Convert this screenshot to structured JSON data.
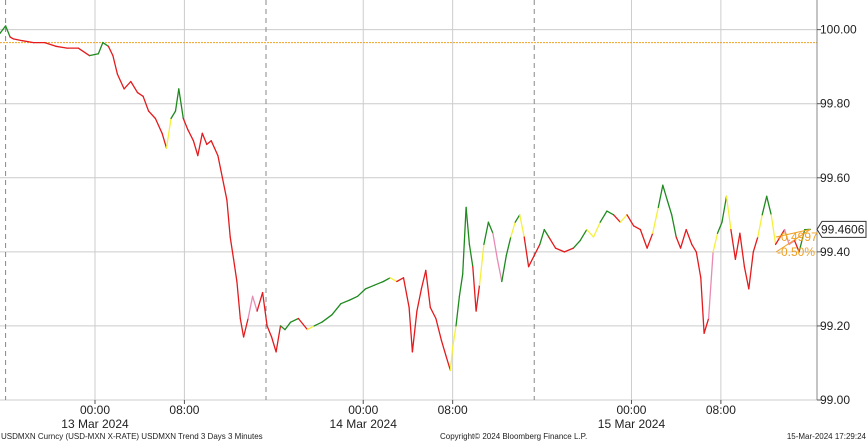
{
  "footer": {
    "left": "USDMXN Curncy (USD-MXN X-RATE) USDMXN Trend 3 Days 3 Minutes",
    "center": "Copyright© 2024 Bloomberg Finance L.P.",
    "right": "15-Mar-2024 17:29:24"
  },
  "chart_data": {
    "type": "line",
    "title": "",
    "xlabel": "",
    "ylabel": "",
    "ylim": [
      99.0,
      100.08
    ],
    "y_ticks": [
      "100.00",
      "99.80",
      "99.60",
      "99.40",
      "99.20",
      "99.00"
    ],
    "y_tick_values": [
      100.0,
      99.8,
      99.6,
      99.4,
      99.2,
      99.0
    ],
    "x_ticks": [
      {
        "label": "00:00",
        "day": "13 Mar 2024",
        "t": 0
      },
      {
        "label": "08:00",
        "day": "",
        "t": 8
      },
      {
        "label": "00:00",
        "day": "14 Mar 2024",
        "t": 24
      },
      {
        "label": "08:00",
        "day": "",
        "t": 32
      },
      {
        "label": "00:00",
        "day": "15 Mar 2024",
        "t": 48
      },
      {
        "label": "08:00",
        "day": "",
        "t": 56
      }
    ],
    "xlim_hours": [
      -8.5,
      64.6
    ],
    "session_breaks_hours": [
      -8,
      15.3,
      39.3
    ],
    "reference_line": 99.965,
    "last_value": "99.4606",
    "last_value_num": 99.4606,
    "change_abs": "-0.4997",
    "change_pct": "-0.50%",
    "colors": {
      "down": "#e41a1c",
      "up": "#1e8a1e",
      "neutral": "#f5f03c",
      "mixed": "#e88ab4",
      "reference": "#f0a020",
      "grid": "#cccccc",
      "annotation": "#f0a020"
    },
    "series": [
      {
        "values": [
          [
            -8.5,
            99.99,
            "up"
          ],
          [
            -8.0,
            100.01,
            "up"
          ],
          [
            -7.6,
            99.98,
            "up"
          ],
          [
            -7.3,
            99.975,
            "down"
          ],
          [
            -6.5,
            99.97,
            "down"
          ],
          [
            -5.5,
            99.965,
            "down"
          ],
          [
            -4.5,
            99.965,
            "down"
          ],
          [
            -3.5,
            99.955,
            "down"
          ],
          [
            -2.5,
            99.95,
            "down"
          ],
          [
            -1.5,
            99.95,
            "down"
          ],
          [
            -0.5,
            99.93,
            "down"
          ],
          [
            0.3,
            99.935,
            "up"
          ],
          [
            0.7,
            99.965,
            "up"
          ],
          [
            1.2,
            99.955,
            "up"
          ],
          [
            1.6,
            99.93,
            "down"
          ],
          [
            2.0,
            99.88,
            "down"
          ],
          [
            2.6,
            99.84,
            "down"
          ],
          [
            3.2,
            99.86,
            "down"
          ],
          [
            3.8,
            99.83,
            "down"
          ],
          [
            4.3,
            99.82,
            "down"
          ],
          [
            4.8,
            99.78,
            "down"
          ],
          [
            5.4,
            99.76,
            "down"
          ],
          [
            6.0,
            99.72,
            "down"
          ],
          [
            6.4,
            99.68,
            "down"
          ],
          [
            6.8,
            99.76,
            "neutral"
          ],
          [
            7.2,
            99.78,
            "up"
          ],
          [
            7.5,
            99.84,
            "up"
          ],
          [
            7.9,
            99.76,
            "up"
          ],
          [
            8.3,
            99.73,
            "down"
          ],
          [
            8.8,
            99.7,
            "down"
          ],
          [
            9.2,
            99.66,
            "down"
          ],
          [
            9.6,
            99.72,
            "down"
          ],
          [
            10.0,
            99.69,
            "down"
          ],
          [
            10.4,
            99.7,
            "down"
          ],
          [
            11.0,
            99.66,
            "down"
          ],
          [
            11.4,
            99.6,
            "down"
          ],
          [
            11.8,
            99.54,
            "down"
          ],
          [
            12.1,
            99.44,
            "down"
          ],
          [
            12.4,
            99.38,
            "down"
          ],
          [
            12.7,
            99.32,
            "down"
          ],
          [
            13.0,
            99.22,
            "down"
          ],
          [
            13.3,
            99.17,
            "down"
          ],
          [
            13.7,
            99.22,
            "down"
          ],
          [
            14.1,
            99.28,
            "mixed"
          ],
          [
            14.5,
            99.24,
            "mixed"
          ],
          [
            15.0,
            99.29,
            "down"
          ],
          [
            15.4,
            99.2,
            "down"
          ],
          [
            15.8,
            99.17,
            "down"
          ],
          [
            16.2,
            99.13,
            "down"
          ],
          [
            16.6,
            99.2,
            "down"
          ],
          [
            17.0,
            99.19,
            "up"
          ],
          [
            17.5,
            99.21,
            "up"
          ],
          [
            18.2,
            99.22,
            "up"
          ],
          [
            19.0,
            99.19,
            "down"
          ],
          [
            19.6,
            99.2,
            "neutral"
          ],
          [
            20.3,
            99.21,
            "up"
          ],
          [
            21.2,
            99.23,
            "up"
          ],
          [
            22.0,
            99.26,
            "up"
          ],
          [
            22.8,
            99.27,
            "up"
          ],
          [
            23.5,
            99.28,
            "up"
          ],
          [
            24.2,
            99.3,
            "up"
          ],
          [
            25.0,
            99.31,
            "up"
          ],
          [
            25.8,
            99.32,
            "up"
          ],
          [
            26.4,
            99.33,
            "up"
          ],
          [
            27.0,
            99.32,
            "neutral"
          ],
          [
            27.6,
            99.33,
            "down"
          ],
          [
            28.1,
            99.25,
            "down"
          ],
          [
            28.4,
            99.13,
            "down"
          ],
          [
            28.8,
            99.24,
            "down"
          ],
          [
            29.2,
            99.3,
            "down"
          ],
          [
            29.6,
            99.35,
            "down"
          ],
          [
            30.0,
            99.25,
            "down"
          ],
          [
            30.5,
            99.22,
            "down"
          ],
          [
            31.0,
            99.16,
            "down"
          ],
          [
            31.4,
            99.12,
            "down"
          ],
          [
            31.8,
            99.08,
            "down"
          ],
          [
            32.0,
            99.14,
            "neutral"
          ],
          [
            32.3,
            99.2,
            "neutral"
          ],
          [
            32.6,
            99.28,
            "up"
          ],
          [
            32.9,
            99.34,
            "up"
          ],
          [
            33.2,
            99.52,
            "up"
          ],
          [
            33.5,
            99.42,
            "up"
          ],
          [
            33.8,
            99.36,
            "up"
          ],
          [
            34.1,
            99.24,
            "down"
          ],
          [
            34.4,
            99.31,
            "down"
          ],
          [
            34.8,
            99.42,
            "neutral"
          ],
          [
            35.2,
            99.48,
            "up"
          ],
          [
            35.6,
            99.45,
            "up"
          ],
          [
            36.0,
            99.38,
            "mixed"
          ],
          [
            36.4,
            99.32,
            "mixed"
          ],
          [
            36.8,
            99.39,
            "up"
          ],
          [
            37.2,
            99.44,
            "up"
          ],
          [
            37.6,
            99.48,
            "neutral"
          ],
          [
            38.0,
            99.5,
            "up"
          ],
          [
            38.4,
            99.44,
            "neutral"
          ],
          [
            38.8,
            99.36,
            "down"
          ],
          [
            39.3,
            99.39,
            "down"
          ],
          [
            39.8,
            99.42,
            "down"
          ],
          [
            40.2,
            99.46,
            "up"
          ],
          [
            40.6,
            99.44,
            "up"
          ],
          [
            41.2,
            99.41,
            "down"
          ],
          [
            42.0,
            99.4,
            "down"
          ],
          [
            42.8,
            99.41,
            "down"
          ],
          [
            43.4,
            99.43,
            "up"
          ],
          [
            44.0,
            99.46,
            "up"
          ],
          [
            44.6,
            99.44,
            "neutral"
          ],
          [
            45.2,
            99.48,
            "neutral"
          ],
          [
            45.8,
            99.51,
            "up"
          ],
          [
            46.4,
            99.5,
            "up"
          ],
          [
            47.0,
            99.48,
            "down"
          ],
          [
            47.6,
            99.5,
            "neutral"
          ],
          [
            48.2,
            99.47,
            "down"
          ],
          [
            48.8,
            99.46,
            "down"
          ],
          [
            49.4,
            99.41,
            "down"
          ],
          [
            49.9,
            99.45,
            "down"
          ],
          [
            50.4,
            99.52,
            "neutral"
          ],
          [
            50.8,
            99.58,
            "up"
          ],
          [
            51.2,
            99.54,
            "up"
          ],
          [
            51.6,
            99.5,
            "up"
          ],
          [
            52.0,
            99.44,
            "up"
          ],
          [
            52.4,
            99.41,
            "down"
          ],
          [
            52.9,
            99.46,
            "down"
          ],
          [
            53.4,
            99.42,
            "down"
          ],
          [
            53.8,
            99.4,
            "down"
          ],
          [
            54.2,
            99.33,
            "down"
          ],
          [
            54.5,
            99.18,
            "down"
          ],
          [
            54.9,
            99.22,
            "down"
          ],
          [
            55.3,
            99.4,
            "mixed"
          ],
          [
            55.7,
            99.45,
            "neutral"
          ],
          [
            56.1,
            99.48,
            "up"
          ],
          [
            56.5,
            99.55,
            "up"
          ],
          [
            56.9,
            99.46,
            "neutral"
          ],
          [
            57.3,
            99.38,
            "down"
          ],
          [
            57.7,
            99.45,
            "down"
          ],
          [
            58.1,
            99.36,
            "down"
          ],
          [
            58.5,
            99.3,
            "down"
          ],
          [
            58.9,
            99.4,
            "down"
          ],
          [
            59.3,
            99.44,
            "down"
          ],
          [
            59.7,
            99.5,
            "neutral"
          ],
          [
            60.1,
            99.55,
            "up"
          ],
          [
            60.5,
            99.5,
            "up"
          ],
          [
            60.9,
            99.42,
            "neutral"
          ],
          [
            61.3,
            99.44,
            "down"
          ],
          [
            61.7,
            99.46,
            "down"
          ],
          [
            62.1,
            99.42,
            "mixed"
          ],
          [
            62.6,
            99.43,
            "mixed"
          ],
          [
            63.0,
            99.4,
            "down"
          ],
          [
            63.5,
            99.46,
            "up"
          ],
          [
            64.0,
            99.4606,
            "up"
          ]
        ]
      }
    ]
  }
}
